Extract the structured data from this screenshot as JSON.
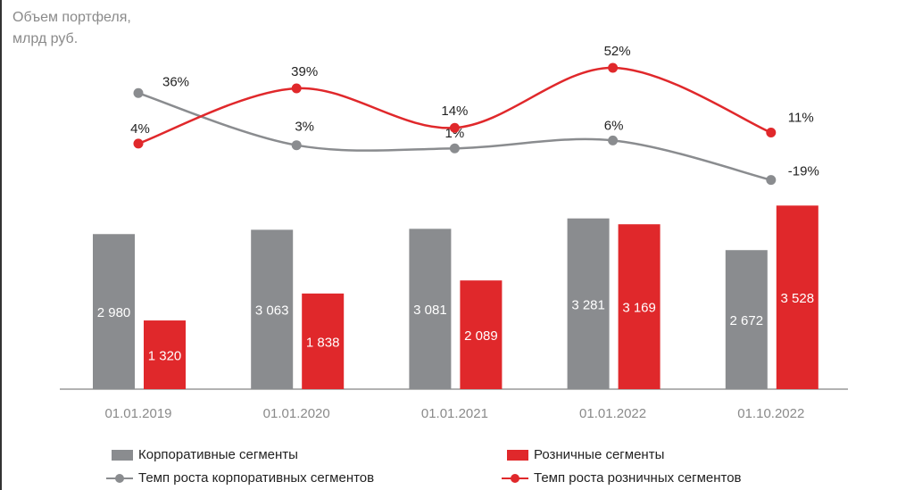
{
  "chart_data": {
    "type": "bar",
    "title": "Объем портфеля, млрд руб.",
    "title_lines": [
      "Объем портфеля,",
      "млрд руб."
    ],
    "categories": [
      "01.01.2019",
      "01.01.2020",
      "01.01.2021",
      "01.01.2022",
      "01.10.2022"
    ],
    "series": [
      {
        "name": "Корпоративные сегменты",
        "type": "bar",
        "color": "#8a8c8f",
        "values": [
          2980,
          3063,
          3081,
          3281,
          2672
        ],
        "labels": [
          "2 980",
          "3 063",
          "3 081",
          "3 281",
          "2 672"
        ]
      },
      {
        "name": "Розничные сегменты",
        "type": "bar",
        "color": "#e0282b",
        "values": [
          1320,
          1838,
          2089,
          3169,
          3528
        ],
        "labels": [
          "1 320",
          "1 838",
          "2 089",
          "3 169",
          "3 528"
        ]
      },
      {
        "name": "Темп роста корпоративных сегментов",
        "type": "line",
        "color": "#8a8c8f",
        "values": [
          36,
          3,
          1,
          6,
          -19
        ],
        "labels": [
          "36%",
          "3%",
          "1%",
          "6%",
          "-19%"
        ]
      },
      {
        "name": "Темп роста розничных сегментов",
        "type": "line",
        "color": "#e0282b",
        "values": [
          4,
          39,
          14,
          52,
          11
        ],
        "labels": [
          "4%",
          "39%",
          "14%",
          "52%",
          "11%"
        ]
      }
    ],
    "legend": "bottom",
    "grid": false
  }
}
